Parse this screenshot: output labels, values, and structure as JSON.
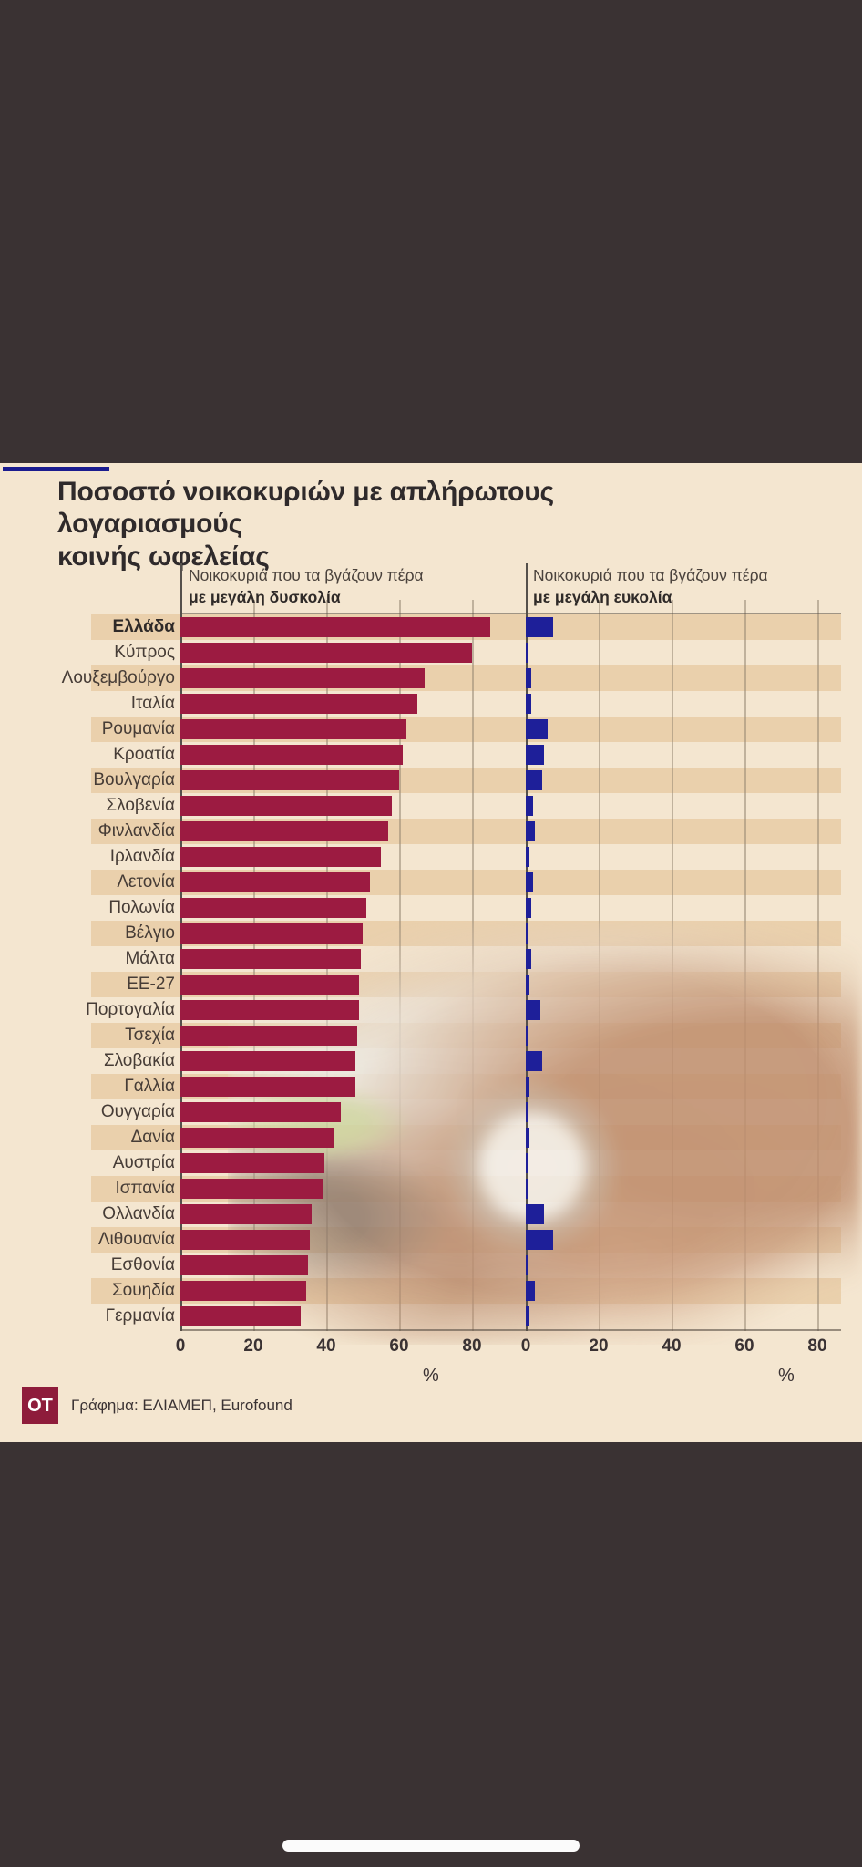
{
  "chart": {
    "title": "Ποσοστό νοικοκυριών με απλήρωτους λογαριασμούς\nκοινής ωφελείας",
    "accent_color": "#1b1c8f",
    "panels": {
      "left": {
        "header_line1": "Νοικοκυριά που τα βγάζουν πέρα",
        "header_line2": "με μεγάλη δυσκολία",
        "bar_color": "#9c1b41",
        "axis_ticks": [
          0,
          20,
          40,
          60,
          80
        ],
        "unit": "%"
      },
      "right": {
        "header_line1": "Νοικοκυριά που τα βγάζουν πέρα",
        "header_line2": "με μεγάλη ευκολία",
        "bar_color": "#1e1f99",
        "axis_ticks": [
          0,
          20,
          40,
          60,
          80
        ],
        "unit": "%"
      }
    },
    "source": {
      "logo": "OT",
      "text": "Γράφημα: ΕΛΙΑΜΕΠ, Eurofound"
    }
  },
  "chart_data": {
    "type": "bar",
    "orientation": "horizontal",
    "title": "Ποσοστό νοικοκυριών με απλήρωτους λογαριασμούς κοινής ωφελείας",
    "categories": [
      "Ελλάδα",
      "Κύπρος",
      "Λουξεμβούργο",
      "Ιταλία",
      "Ρουμανία",
      "Κροατία",
      "Βουλγαρία",
      "Σλοβενία",
      "Φινλανδία",
      "Ιρλανδία",
      "Λετονία",
      "Πολωνία",
      "Βέλγιο",
      "Μάλτα",
      "ΕΕ-27",
      "Πορτογαλία",
      "Τσεχία",
      "Σλοβακία",
      "Γαλλία",
      "Ουγγαρία",
      "Δανία",
      "Αυστρία",
      "Ισπανία",
      "Ολλανδία",
      "Λιθουανία",
      "Εσθονία",
      "Σουηδία",
      "Γερμανία"
    ],
    "highlight_category": "Ελλάδα",
    "series": [
      {
        "name": "Νοικοκυριά που τα βγάζουν πέρα με μεγάλη δυσκολία",
        "values": [
          85,
          80,
          67,
          65,
          62,
          61,
          60,
          58,
          57,
          55,
          52,
          51,
          50,
          49.5,
          49,
          49,
          48.5,
          48,
          48,
          44,
          42,
          39.5,
          39,
          36,
          35.5,
          35,
          34.5,
          33
        ]
      },
      {
        "name": "Νοικοκυριά που τα βγάζουν πέρα με μεγάλη ευκολία",
        "values": [
          7.5,
          0.5,
          1.5,
          1.5,
          6,
          5,
          4.5,
          2,
          2.5,
          1,
          2,
          1.5,
          0.5,
          1.5,
          1,
          4,
          0.5,
          4.5,
          1,
          0.5,
          1,
          0.5,
          0.5,
          5,
          7.5,
          0.5,
          2.5,
          1
        ]
      }
    ],
    "xlim": [
      0,
      80
    ],
    "unit": "%",
    "grid": true,
    "row_stripes": true,
    "legend_position": "panel headers above each chart half"
  }
}
